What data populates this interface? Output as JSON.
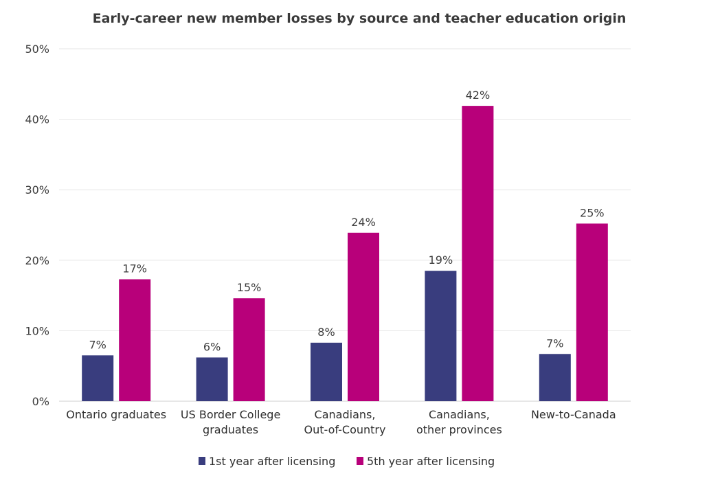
{
  "chart_data": {
    "type": "bar",
    "title": "Early-career new member losses by source and teacher education origin",
    "categories": [
      [
        "Ontario graduates"
      ],
      [
        "US Border College",
        "graduates"
      ],
      [
        "Canadians,",
        "Out-of-Country"
      ],
      [
        "Canadians,",
        "other provinces"
      ],
      [
        "New-to-Canada"
      ]
    ],
    "series": [
      {
        "name": "1st year after licensing",
        "color": "#393d7e",
        "values": [
          6.5,
          6.2,
          8.3,
          18.5,
          6.7
        ],
        "labels": [
          "7%",
          "6%",
          "8%",
          "19%",
          "7%"
        ]
      },
      {
        "name": "5th year after licensing",
        "color": "#b8007a",
        "values": [
          17.3,
          14.6,
          23.9,
          41.9,
          25.2
        ],
        "labels": [
          "17%",
          "15%",
          "24%",
          "42%",
          "25%"
        ]
      }
    ],
    "ylim": [
      0,
      50
    ],
    "yticks": [
      0,
      10,
      20,
      30,
      40,
      50
    ],
    "ytick_labels": [
      "0%",
      "10%",
      "20%",
      "30%",
      "40%",
      "50%"
    ],
    "xlabel": "",
    "ylabel": "",
    "grid": true,
    "legend_position": "bottom-center"
  }
}
